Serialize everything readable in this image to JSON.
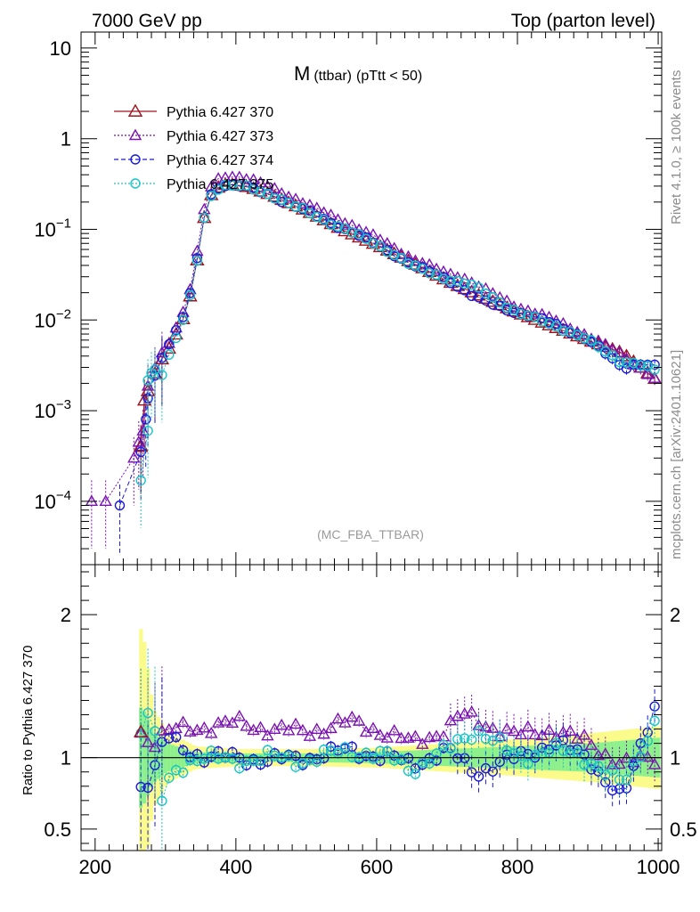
{
  "header": {
    "left": "7000 GeV pp",
    "right": "Top (parton level)",
    "side_top": "Rivet 4.1.0, ≥ 100k events",
    "side_bottom": "mcplots.cern.ch [arXiv:2401.10621]"
  },
  "plot_title": {
    "main": "M",
    "sub": "(ttbar)",
    "cut": "(pTtt < 50)"
  },
  "analysis_tag": "(MC_FBA_TTBAR)",
  "ratio_ylabel": "Ratio to Pythia 6.427 370",
  "legend": [
    {
      "label": "Pythia 6.427 370",
      "color": "#a0121f",
      "marker": "triangle-up",
      "dash": "solid"
    },
    {
      "label": "Pythia 6.427 373",
      "color": "#7a12b0",
      "marker": "triangle-up-small",
      "dash": "dotted"
    },
    {
      "label": "Pythia 6.427 374",
      "color": "#1a1ad8",
      "marker": "circle",
      "dash": "dashed"
    },
    {
      "label": "Pythia 6.427 375",
      "color": "#19c4c4",
      "marker": "circle",
      "dash": "dotted"
    }
  ],
  "chart_data": {
    "type": "line",
    "xlabel": "",
    "ylabel": "",
    "x_range": [
      180,
      1005
    ],
    "y_range_main": [
      2e-05,
      15
    ],
    "y_scale_main": "log",
    "y_range_ratio": [
      0.35,
      2.35
    ],
    "x_ticks": [
      "200",
      "400",
      "600",
      "800",
      "1000"
    ],
    "y_ticks_main": [
      {
        "value": 10,
        "base": "10",
        "exp": ""
      },
      {
        "value": 1,
        "base": "1",
        "exp": ""
      },
      {
        "value": 0.1,
        "base": "10",
        "exp": "−1"
      },
      {
        "value": 0.01,
        "base": "10",
        "exp": "−2"
      },
      {
        "value": 0.001,
        "base": "10",
        "exp": "−3"
      },
      {
        "value": 0.0001,
        "base": "10",
        "exp": "−4"
      }
    ],
    "y_ticks_ratio": [
      {
        "value": 2,
        "label": "2"
      },
      {
        "value": 1,
        "label": "1"
      },
      {
        "value": 0.5,
        "label": "0.5"
      }
    ],
    "anchors_370": [
      [
        265,
        0.0004
      ],
      [
        270,
        0.0013
      ],
      [
        280,
        0.0021
      ],
      [
        290,
        0.0032
      ],
      [
        300,
        0.0043
      ],
      [
        310,
        0.0055
      ],
      [
        320,
        0.0088
      ],
      [
        330,
        0.012
      ],
      [
        340,
        0.028
      ],
      [
        350,
        0.075
      ],
      [
        357,
        0.17
      ],
      [
        365,
        0.24
      ],
      [
        375,
        0.29
      ],
      [
        385,
        0.31
      ],
      [
        400,
        0.31
      ],
      [
        420,
        0.29
      ],
      [
        450,
        0.24
      ],
      [
        500,
        0.16
      ],
      [
        550,
        0.1
      ],
      [
        600,
        0.067
      ],
      [
        650,
        0.043
      ],
      [
        700,
        0.027
      ],
      [
        750,
        0.018
      ],
      [
        800,
        0.012
      ],
      [
        850,
        0.0085
      ],
      [
        900,
        0.006
      ],
      [
        950,
        0.0043
      ],
      [
        1000,
        0.0021
      ]
    ],
    "series": [
      {
        "name": "Pythia 6.427 370",
        "low_points": [
          [
            265,
            0.00041
          ],
          [
            270,
            0.0013
          ]
        ]
      },
      {
        "name": "Pythia 6.427 373",
        "low_points": [
          [
            195,
            0.0001
          ],
          [
            215,
            0.0001
          ],
          [
            255,
            0.0003
          ],
          [
            262,
            0.00045
          ],
          [
            268,
            0.0006
          ]
        ],
        "ratio_profile": [
          [
            265,
            1.18
          ],
          [
            280,
            1.1
          ],
          [
            300,
            1.18
          ],
          [
            330,
            1.2
          ],
          [
            360,
            1.22
          ],
          [
            400,
            1.24
          ],
          [
            450,
            1.2
          ],
          [
            500,
            1.18
          ],
          [
            560,
            1.25
          ],
          [
            600,
            1.2
          ],
          [
            650,
            1.1
          ],
          [
            700,
            1.2
          ],
          [
            720,
            1.3
          ],
          [
            800,
            1.15
          ],
          [
            850,
            1.2
          ],
          [
            900,
            1.1
          ],
          [
            950,
            0.95
          ],
          [
            1000,
            1.0
          ]
        ]
      },
      {
        "name": "Pythia 6.427 374",
        "low_points": [
          [
            235,
            9e-05
          ],
          [
            265,
            0.00035
          ],
          [
            272,
            0.0008
          ]
        ],
        "ratio_profile": [
          [
            265,
            0.8
          ],
          [
            280,
            0.85
          ],
          [
            300,
            1.15
          ],
          [
            330,
            1.05
          ],
          [
            360,
            1.0
          ],
          [
            400,
            1.0
          ],
          [
            450,
            0.98
          ],
          [
            500,
            1.0
          ],
          [
            560,
            1.05
          ],
          [
            620,
            1.0
          ],
          [
            650,
            0.95
          ],
          [
            700,
            1.05
          ],
          [
            740,
            0.9
          ],
          [
            800,
            1.0
          ],
          [
            850,
            1.1
          ],
          [
            900,
            1.0
          ],
          [
            950,
            0.7
          ],
          [
            1000,
            1.45
          ]
        ]
      },
      {
        "name": "Pythia 6.427 375",
        "low_points": [
          [
            265,
            0.00017
          ],
          [
            275,
            0.0006
          ],
          [
            280,
            0.0026
          ]
        ],
        "ratio_profile": [
          [
            265,
            1.2
          ],
          [
            280,
            1.35
          ],
          [
            295,
            0.7
          ],
          [
            310,
            0.9
          ],
          [
            340,
            1.0
          ],
          [
            400,
            0.98
          ],
          [
            450,
            1.0
          ],
          [
            500,
            0.98
          ],
          [
            560,
            1.05
          ],
          [
            620,
            1.0
          ],
          [
            650,
            0.92
          ],
          [
            700,
            1.05
          ],
          [
            740,
            1.2
          ],
          [
            800,
            1.0
          ],
          [
            850,
            1.05
          ],
          [
            900,
            1.0
          ],
          [
            950,
            0.8
          ],
          [
            1000,
            1.3
          ]
        ]
      }
    ],
    "uncertainty_band": {
      "yellow_halfwidth": [
        [
          265,
          0.9
        ],
        [
          280,
          0.35
        ],
        [
          300,
          0.18
        ],
        [
          340,
          0.08
        ],
        [
          400,
          0.06
        ],
        [
          500,
          0.06
        ],
        [
          600,
          0.07
        ],
        [
          700,
          0.1
        ],
        [
          800,
          0.13
        ],
        [
          900,
          0.17
        ],
        [
          1000,
          0.22
        ]
      ],
      "green_halfwidth": [
        [
          265,
          0.35
        ],
        [
          280,
          0.18
        ],
        [
          300,
          0.1
        ],
        [
          340,
          0.04
        ],
        [
          400,
          0.03
        ],
        [
          500,
          0.03
        ],
        [
          600,
          0.04
        ],
        [
          700,
          0.06
        ],
        [
          800,
          0.08
        ],
        [
          900,
          0.1
        ],
        [
          1000,
          0.14
        ]
      ]
    }
  }
}
